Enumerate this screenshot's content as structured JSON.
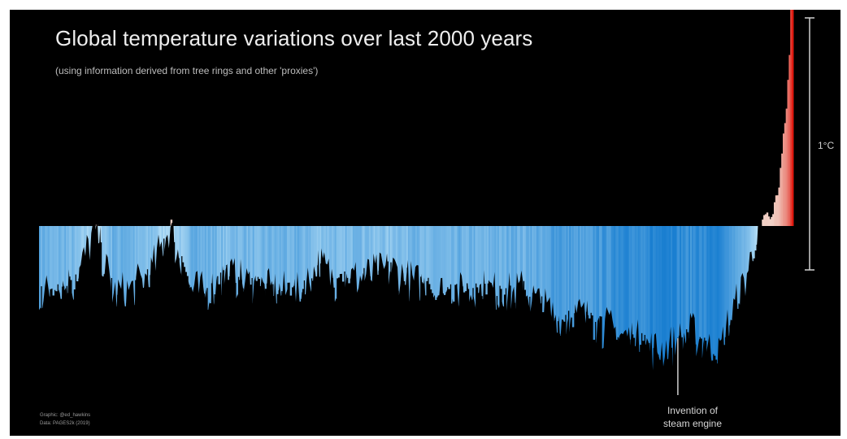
{
  "title": "Global temperature variations over last 2000 years",
  "subtitle": "(using information derived from tree rings and other 'proxies')",
  "scale_bar": {
    "label": "1°C"
  },
  "annotation": {
    "line1": "Invention of",
    "line2": "steam engine",
    "year": 1712
  },
  "credits": {
    "graphic": "Graphic: @ed_hawkins",
    "data": "Data: PAGES2k (2019)"
  },
  "colors": {
    "background": "#000000",
    "cold_light": "#c6e9fa",
    "cold_dark": "#1a7fd1",
    "warm_light": "#f2d7cc",
    "warm_dark": "#e01a10"
  },
  "chart_data": {
    "type": "area",
    "x_range": [
      1,
      2017
    ],
    "baseline": 0,
    "y_unit": "°C",
    "scale_bar_value": 1,
    "x": [
      1,
      100,
      150,
      200,
      250,
      300,
      350,
      400,
      450,
      500,
      600,
      700,
      750,
      800,
      900,
      950,
      1000,
      1100,
      1200,
      1250,
      1300,
      1350,
      1400,
      1450,
      1500,
      1550,
      1600,
      1650,
      1700,
      1750,
      1800,
      1820,
      1850,
      1880,
      1900,
      1920,
      1940,
      1960,
      1980,
      2000,
      2010,
      2017
    ],
    "y": [
      -0.3,
      -0.25,
      -0.04,
      -0.3,
      -0.28,
      -0.22,
      -0.03,
      -0.27,
      -0.3,
      -0.22,
      -0.28,
      -0.3,
      -0.18,
      -0.25,
      -0.22,
      -0.2,
      -0.25,
      -0.3,
      -0.28,
      -0.3,
      -0.28,
      -0.35,
      -0.4,
      -0.38,
      -0.42,
      -0.45,
      -0.48,
      -0.52,
      -0.5,
      -0.45,
      -0.52,
      -0.55,
      -0.4,
      -0.3,
      -0.2,
      -0.1,
      0.05,
      0.03,
      0.15,
      0.45,
      0.7,
      1.1
    ]
  }
}
